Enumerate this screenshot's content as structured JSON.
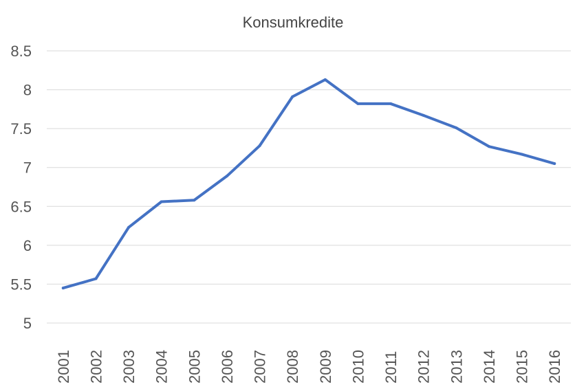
{
  "chart_data": {
    "type": "line",
    "title": "Konsumkredite",
    "xlabel": "",
    "ylabel": "",
    "categories": [
      "2001",
      "2002",
      "2003",
      "2004",
      "2005",
      "2006",
      "2007",
      "2008",
      "2009",
      "2010",
      "2011",
      "2012",
      "2013",
      "2014",
      "2015",
      "2016"
    ],
    "series": [
      {
        "values": [
          5.45,
          5.57,
          6.23,
          6.56,
          6.58,
          6.89,
          7.28,
          7.91,
          8.13,
          7.82,
          7.82,
          7.67,
          7.51,
          7.27,
          7.17,
          7.05
        ]
      }
    ],
    "ylim": [
      5,
      8.5
    ],
    "yticks": [
      "5",
      "5.5",
      "6",
      "6.5",
      "7",
      "7.5",
      "8",
      "8.5"
    ],
    "grid": true,
    "legend": "none",
    "colors": {
      "series": "#4472c4",
      "grid": "#d9d9d9"
    }
  }
}
